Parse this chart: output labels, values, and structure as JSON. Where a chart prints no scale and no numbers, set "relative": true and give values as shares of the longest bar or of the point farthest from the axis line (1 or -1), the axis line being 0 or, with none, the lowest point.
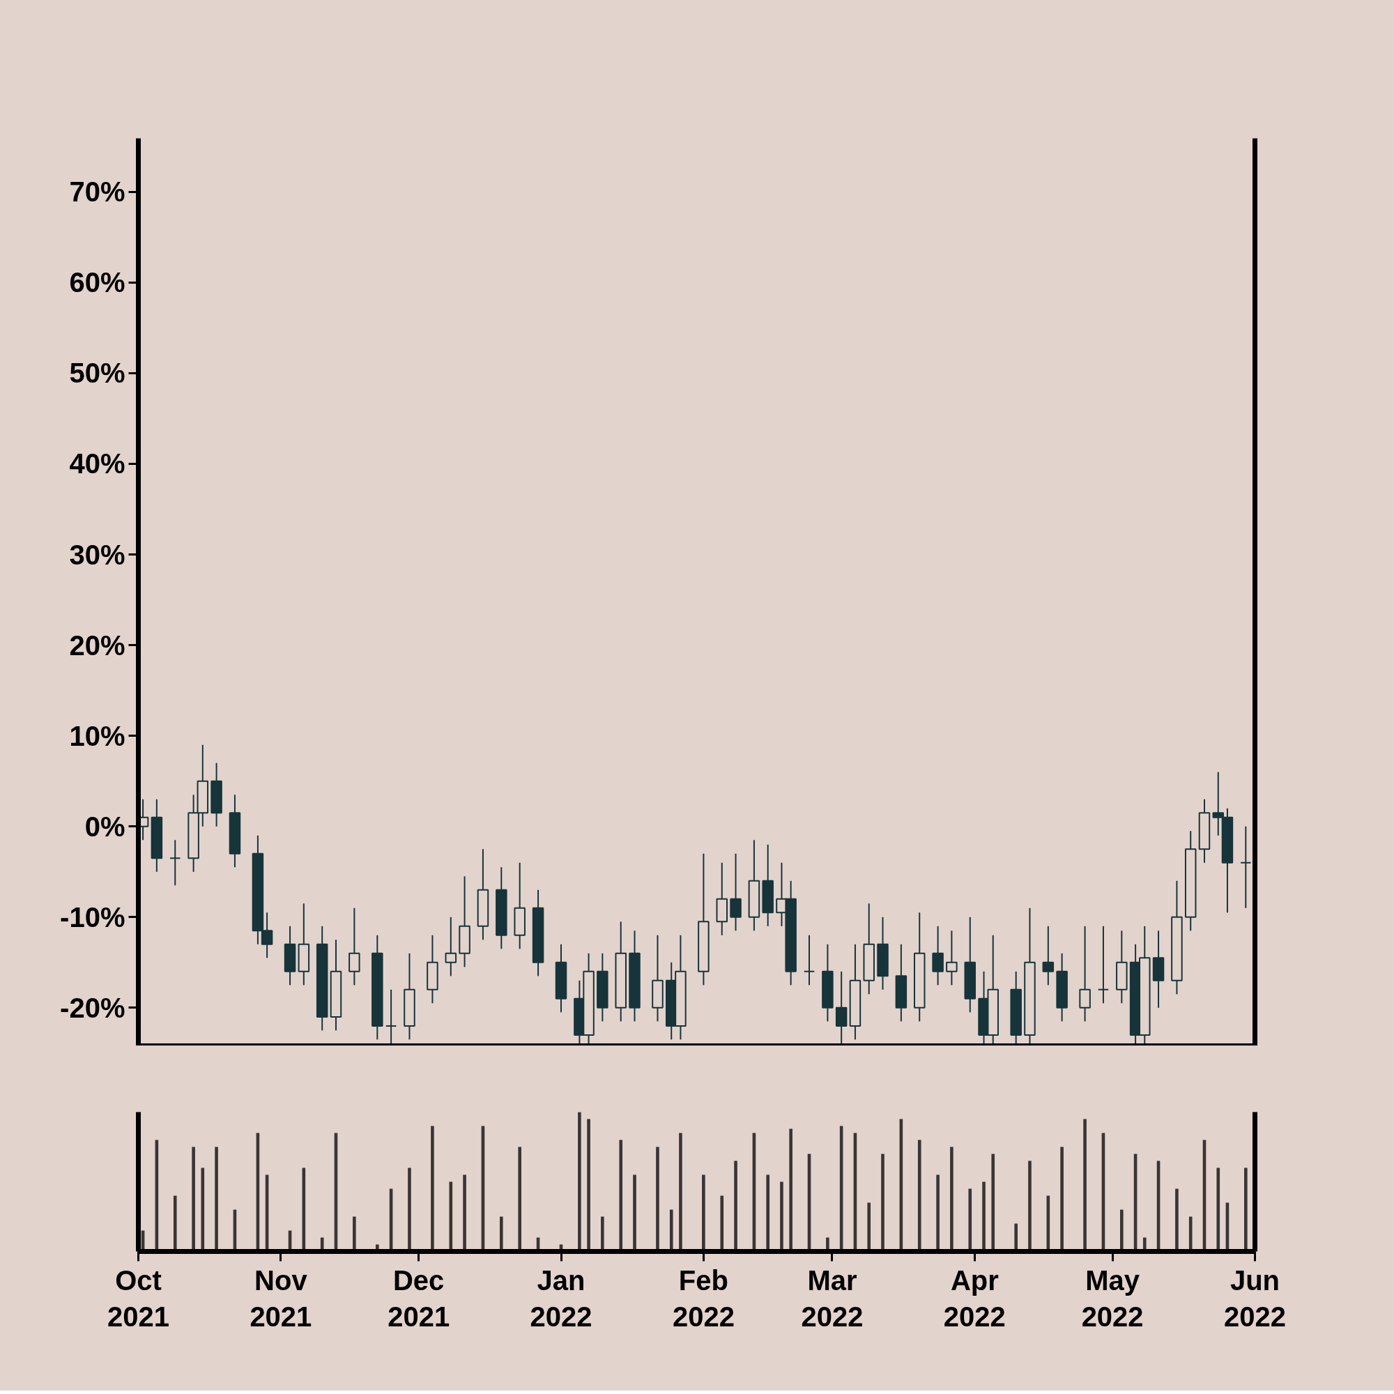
{
  "chart_data": [
    {
      "type": "candlestick",
      "color": "#17343a",
      "x": [
        "2021-10-02",
        "2021-10-05",
        "2021-10-09",
        "2021-10-13",
        "2021-10-15",
        "2021-10-18",
        "2021-10-22",
        "2021-10-27",
        "2021-10-29",
        "2021-11-03",
        "2021-11-06",
        "2021-11-10",
        "2021-11-13",
        "2021-11-17",
        "2021-11-22",
        "2021-11-25",
        "2021-11-29",
        "2021-12-04",
        "2021-12-08",
        "2021-12-11",
        "2021-12-15",
        "2021-12-19",
        "2021-12-23",
        "2021-12-27",
        "2022-01-01",
        "2022-01-05",
        "2022-01-07",
        "2022-01-10",
        "2022-01-14",
        "2022-01-17",
        "2022-01-22",
        "2022-01-25",
        "2022-01-27",
        "2022-02-01",
        "2022-02-05",
        "2022-02-08",
        "2022-02-12",
        "2022-02-15",
        "2022-02-18",
        "2022-02-20",
        "2022-02-24",
        "2022-02-28",
        "2022-03-03",
        "2022-03-06",
        "2022-03-09",
        "2022-03-12",
        "2022-03-16",
        "2022-03-20",
        "2022-03-24",
        "2022-03-27",
        "2022-03-31",
        "2022-04-03",
        "2022-04-05",
        "2022-04-10",
        "2022-04-13",
        "2022-04-17",
        "2022-04-20",
        "2022-04-25",
        "2022-04-29",
        "2022-05-03",
        "2022-05-06",
        "2022-05-08",
        "2022-05-11",
        "2022-05-15",
        "2022-05-18",
        "2022-05-21",
        "2022-05-24",
        "2022-05-26",
        "2022-05-30"
      ],
      "ohlc": [
        [
          0,
          3,
          -1.5,
          1
        ],
        [
          1,
          3,
          -5,
          -3.5
        ],
        [
          -3.5,
          -1.5,
          -6.5,
          -3.5
        ],
        [
          -3.5,
          3.5,
          -5,
          1.5
        ],
        [
          1.5,
          9,
          0,
          5
        ],
        [
          5,
          7,
          0,
          1.5
        ],
        [
          1.5,
          3.5,
          -4.5,
          -3
        ],
        [
          -3,
          -1,
          -13,
          -11.5
        ],
        [
          -11.5,
          -9.5,
          -14.5,
          -13
        ],
        [
          -13,
          -11,
          -17.5,
          -16
        ],
        [
          -16,
          -8.5,
          -17.5,
          -13
        ],
        [
          -13,
          -11,
          -22.5,
          -21
        ],
        [
          -21,
          -12.5,
          -22.5,
          -16
        ],
        [
          -16,
          -9,
          -17.5,
          -14
        ],
        [
          -14,
          -12,
          -23.5,
          -22
        ],
        [
          -22,
          -18,
          -24,
          -22
        ],
        [
          -22,
          -14,
          -23.5,
          -18
        ],
        [
          -18,
          -12,
          -19.5,
          -15
        ],
        [
          -15,
          -10,
          -16.5,
          -14
        ],
        [
          -14,
          -5.5,
          -15.5,
          -11
        ],
        [
          -11,
          -2.5,
          -12.5,
          -7
        ],
        [
          -7,
          -4.5,
          -13.5,
          -12
        ],
        [
          -12,
          -4,
          -13.5,
          -9
        ],
        [
          -9,
          -7,
          -16.5,
          -15
        ],
        [
          -15,
          -13,
          -20.5,
          -19
        ],
        [
          -19,
          -17,
          -24,
          -23
        ],
        [
          -23,
          -14,
          -24,
          -16
        ],
        [
          -16,
          -14,
          -21.5,
          -20
        ],
        [
          -20,
          -10.5,
          -21.5,
          -14
        ],
        [
          -14,
          -11.5,
          -21.5,
          -20
        ],
        [
          -20,
          -12,
          -21.5,
          -17
        ],
        [
          -17,
          -15,
          -23.5,
          -22
        ],
        [
          -22,
          -12,
          -23.5,
          -16
        ],
        [
          -16,
          -3,
          -17.5,
          -10.5
        ],
        [
          -10.5,
          -4,
          -12,
          -8
        ],
        [
          -8,
          -3,
          -11.5,
          -10
        ],
        [
          -10,
          -1.5,
          -11.5,
          -6
        ],
        [
          -6,
          -2,
          -11,
          -9.5
        ],
        [
          -9.5,
          -4,
          -11,
          -8
        ],
        [
          -8,
          -6,
          -17.5,
          -16
        ],
        [
          -16,
          -12,
          -17.5,
          -16
        ],
        [
          -16,
          -13,
          -21.5,
          -20
        ],
        [
          -20,
          -16,
          -24,
          -22
        ],
        [
          -22,
          -13,
          -23.5,
          -17
        ],
        [
          -17,
          -8.5,
          -18.5,
          -13
        ],
        [
          -13,
          -10,
          -18,
          -16.5
        ],
        [
          -16.5,
          -13,
          -21.5,
          -20
        ],
        [
          -20,
          -9.5,
          -21.5,
          -14
        ],
        [
          -14,
          -11,
          -17.5,
          -16
        ],
        [
          -16,
          -11.5,
          -17.5,
          -15
        ],
        [
          -15,
          -10,
          -20.5,
          -19
        ],
        [
          -19,
          -16,
          -24,
          -23
        ],
        [
          -23,
          -12,
          -24,
          -18
        ],
        [
          -18,
          -16,
          -24,
          -23
        ],
        [
          -23,
          -9,
          -24,
          -15
        ],
        [
          -15,
          -11,
          -17.5,
          -16
        ],
        [
          -16,
          -14,
          -21.5,
          -20
        ],
        [
          -20,
          -11,
          -21.5,
          -18
        ],
        [
          -18,
          -11,
          -19.5,
          -18
        ],
        [
          -18,
          -11.5,
          -19.5,
          -15
        ],
        [
          -15,
          -13,
          -24,
          -23
        ],
        [
          -23,
          -11,
          -24,
          -14.5
        ],
        [
          -14.5,
          -11.5,
          -20,
          -17
        ],
        [
          -17,
          -6,
          -18.5,
          -10
        ],
        [
          -10,
          -0.5,
          -11.5,
          -2.5
        ],
        [
          -2.5,
          3,
          -4,
          1.5
        ],
        [
          1.5,
          6,
          -1,
          1
        ],
        [
          1,
          2,
          -9.5,
          -4
        ],
        [
          -4,
          0,
          -9,
          -4
        ]
      ],
      "xlim": [
        "2021-10-01",
        "2022-06-01"
      ],
      "ylim": [
        -24.2,
        75.9
      ],
      "yticks": [
        {
          "value": -20,
          "label": "-20%"
        },
        {
          "value": -10,
          "label": "-10%"
        },
        {
          "value": 0,
          "label": "0%"
        },
        {
          "value": 10,
          "label": "10%"
        },
        {
          "value": 20,
          "label": "20%"
        },
        {
          "value": 30,
          "label": "30%"
        },
        {
          "value": 40,
          "label": "40%"
        },
        {
          "value": 50,
          "label": "50%"
        },
        {
          "value": 60,
          "label": "60%"
        },
        {
          "value": 70,
          "label": "70%"
        }
      ],
      "tick_labels": "y"
    },
    {
      "type": "bar",
      "relative": true,
      "color": "#3a3535",
      "x": [
        "2021-10-02",
        "2021-10-05",
        "2021-10-09",
        "2021-10-13",
        "2021-10-15",
        "2021-10-18",
        "2021-10-22",
        "2021-10-27",
        "2021-10-29",
        "2021-11-03",
        "2021-11-06",
        "2021-11-10",
        "2021-11-13",
        "2021-11-17",
        "2021-11-22",
        "2021-11-25",
        "2021-11-29",
        "2021-12-04",
        "2021-12-08",
        "2021-12-11",
        "2021-12-15",
        "2021-12-19",
        "2021-12-23",
        "2021-12-27",
        "2022-01-01",
        "2022-01-05",
        "2022-01-07",
        "2022-01-10",
        "2022-01-14",
        "2022-01-17",
        "2022-01-22",
        "2022-01-25",
        "2022-01-27",
        "2022-02-01",
        "2022-02-05",
        "2022-02-08",
        "2022-02-12",
        "2022-02-15",
        "2022-02-18",
        "2022-02-20",
        "2022-02-24",
        "2022-02-28",
        "2022-03-03",
        "2022-03-06",
        "2022-03-09",
        "2022-03-12",
        "2022-03-16",
        "2022-03-20",
        "2022-03-24",
        "2022-03-27",
        "2022-03-31",
        "2022-04-03",
        "2022-04-05",
        "2022-04-10",
        "2022-04-13",
        "2022-04-17",
        "2022-04-20",
        "2022-04-25",
        "2022-04-29",
        "2022-05-03",
        "2022-05-06",
        "2022-05-08",
        "2022-05-11",
        "2022-05-15",
        "2022-05-18",
        "2022-05-21",
        "2022-05-24",
        "2022-05-26",
        "2022-05-30"
      ],
      "values": [
        0.15,
        0.8,
        0.4,
        0.75,
        0.6,
        0.75,
        0.3,
        0.85,
        0.55,
        0.15,
        0.6,
        0.1,
        0.85,
        0.25,
        0.05,
        0.45,
        0.6,
        0.9,
        0.5,
        0.55,
        0.9,
        0.25,
        0.75,
        0.1,
        0.05,
        1,
        0.95,
        0.25,
        0.8,
        0.55,
        0.75,
        0.3,
        0.85,
        0.55,
        0.4,
        0.65,
        0.85,
        0.55,
        0.5,
        0.88,
        0.7,
        0.1,
        0.9,
        0.85,
        0.35,
        0.7,
        0.95,
        0.8,
        0.55,
        0.75,
        0.45,
        0.5,
        0.7,
        0.2,
        0.65,
        0.4,
        0.75,
        0.95,
        0.85,
        0.3,
        0.7,
        0.1,
        0.65,
        0.45,
        0.25,
        0.8,
        0.6,
        0.35,
        0.6
      ],
      "xlim": [
        "2021-10-01",
        "2022-06-01"
      ],
      "xticks": [
        {
          "value": "2021-10-01",
          "label": "Oct\n2021"
        },
        {
          "value": "2021-11-01",
          "label": "Nov\n2021"
        },
        {
          "value": "2021-12-01",
          "label": "Dec\n2021"
        },
        {
          "value": "2022-01-01",
          "label": "Jan\n2022"
        },
        {
          "value": "2022-02-01",
          "label": "Feb\n2022"
        },
        {
          "value": "2022-03-01",
          "label": "Mar\n2022"
        },
        {
          "value": "2022-04-01",
          "label": "Apr\n2022"
        },
        {
          "value": "2022-05-01",
          "label": "May\n2022"
        },
        {
          "value": "2022-06-01",
          "label": "Jun\n2022"
        }
      ],
      "tick_labels": "x"
    }
  ]
}
